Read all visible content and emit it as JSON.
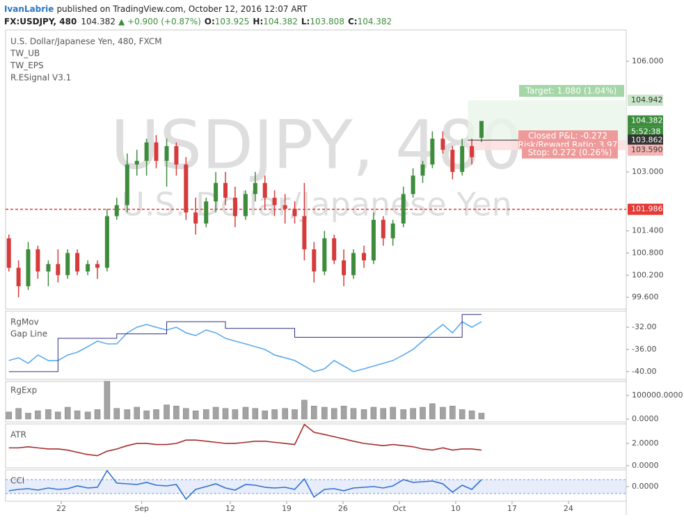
{
  "header": {
    "author": "IvanLabrie",
    "published": "published on TradingView.com, October 12, 2016 12:07 ART",
    "symbol": "FX:USDJPY, 480",
    "last": "104.382",
    "change": "▲ +0.900 (+0.87%)",
    "ohlc": [
      {
        "label": "O:",
        "value": "103.925"
      },
      {
        "label": "H:",
        "value": "104.382"
      },
      {
        "label": "L:",
        "value": "103.808"
      },
      {
        "label": "C:",
        "value": "104.382"
      }
    ]
  },
  "chart_data": [
    {
      "type": "candlestick",
      "title": "U.S. Dollar/Japanese Yen, 480, FXCM",
      "indicators": [
        "TW_UB",
        "TW_EPS",
        "R.ESignal V3.1"
      ],
      "watermark": [
        "USDJPY, 480",
        "U.S. Dollar/Japanese Yen"
      ],
      "up_color": "#3c8c3c",
      "down_color": "#d73a3a",
      "x": [
        15.5,
        16.7,
        17.9,
        19.1,
        20.4,
        21.6,
        22.8,
        24.0,
        25.3,
        26.5,
        27.7,
        28.9,
        30.2,
        31.4,
        32.6,
        33.8,
        35.1,
        36.3,
        37.5,
        38.7,
        40.0,
        41.2,
        42.4,
        43.6,
        44.9,
        46.1,
        47.3,
        48.5,
        49.8,
        51.0,
        52.2,
        53.4,
        54.7,
        55.9,
        57.1,
        58.3,
        59.6,
        60.8,
        62.0,
        63.2,
        64.5,
        65.7,
        66.9,
        68.1,
        69.4,
        70.6,
        71.8,
        73.0,
        74.2
      ],
      "open": [
        101.2,
        100.4,
        99.9,
        100.9,
        100.3,
        100.5,
        100.2,
        100.8,
        100.3,
        100.5,
        100.4,
        101.8,
        102.1,
        103.2,
        103.3,
        103.8,
        103.3,
        103.7,
        103.2,
        101.9,
        101.6,
        102.2,
        102.7,
        102.3,
        101.8,
        102.4,
        102.7,
        102.3,
        102.1,
        102.0,
        101.8,
        100.9,
        100.3,
        101.2,
        100.6,
        100.2,
        100.8,
        100.6,
        101.7,
        101.2,
        101.6,
        102.4,
        102.9,
        103.2,
        103.9,
        103.6,
        103.0,
        103.7,
        103.925
      ],
      "high": [
        101.3,
        100.6,
        101.1,
        101.0,
        100.6,
        100.9,
        100.9,
        100.9,
        100.6,
        100.6,
        102.0,
        102.3,
        103.5,
        103.6,
        103.9,
        104.0,
        103.9,
        103.8,
        103.4,
        102.3,
        102.3,
        103.0,
        103.0,
        102.6,
        102.5,
        103.0,
        102.9,
        102.5,
        102.4,
        102.2,
        102.7,
        101.1,
        101.4,
        101.3,
        100.9,
        100.9,
        101.0,
        101.9,
        101.8,
        101.7,
        102.6,
        103.1,
        103.3,
        104.1,
        104.1,
        103.7,
        103.9,
        103.9,
        104.382
      ],
      "low": [
        100.3,
        99.6,
        99.8,
        100.1,
        99.9,
        100.0,
        100.1,
        100.2,
        100.2,
        100.1,
        100.3,
        101.7,
        101.9,
        102.9,
        102.9,
        103.1,
        102.6,
        102.9,
        101.7,
        101.3,
        101.5,
        101.9,
        102.1,
        101.5,
        101.7,
        102.2,
        102.0,
        101.8,
        101.6,
        101.6,
        100.6,
        100.0,
        100.2,
        100.5,
        99.9,
        100.1,
        100.4,
        100.5,
        101.0,
        101.0,
        101.5,
        102.3,
        102.7,
        103.1,
        103.5,
        102.8,
        102.9,
        103.2,
        103.808
      ],
      "close": [
        100.4,
        99.9,
        100.9,
        100.3,
        100.5,
        100.2,
        100.8,
        100.3,
        100.5,
        100.4,
        101.8,
        102.1,
        103.2,
        103.3,
        103.8,
        103.3,
        103.7,
        103.2,
        101.9,
        101.6,
        102.2,
        102.7,
        102.3,
        101.8,
        102.4,
        102.7,
        102.3,
        102.1,
        102.0,
        101.8,
        100.9,
        100.3,
        101.2,
        100.6,
        100.2,
        100.8,
        100.6,
        101.7,
        101.2,
        101.6,
        102.4,
        102.9,
        103.2,
        103.9,
        103.6,
        103.0,
        103.7,
        103.4,
        104.382
      ],
      "xlim": [
        15.09,
        92.18
      ],
      "xticks": [
        22,
        {
          "value": 32,
          "label": "Sep"
        },
        {
          "value": 43,
          "label": "12"
        },
        {
          "value": 50,
          "label": "19"
        },
        {
          "value": 57,
          "label": "26"
        },
        {
          "value": 64,
          "label": "Oct"
        },
        {
          "value": 71,
          "label": "10"
        },
        {
          "value": 78,
          "label": "17"
        },
        {
          "value": 85,
          "label": "24"
        }
      ],
      "ylim": [
        99.28,
        106.85
      ],
      "yticks": [
        {
          "value": 106,
          "label": "106.000"
        },
        {
          "value": 103,
          "label": "103.000"
        },
        {
          "value": 101.4,
          "label": "101.400"
        },
        {
          "value": 100.8,
          "label": "100.800"
        },
        {
          "value": 100.2,
          "label": "100.200"
        },
        {
          "value": 99.6,
          "label": "99.600"
        }
      ],
      "level": {
        "value": 101.986,
        "label": "101.986",
        "color": "#e53935"
      },
      "last": {
        "value": 104.382,
        "label": "104.382",
        "color": "#3c8c3c"
      },
      "countdown": "5:52:38",
      "position": {
        "x": 72.5,
        "target": {
          "value": 104.942,
          "label": "104.942"
        },
        "entry": {
          "value": 103.862,
          "label": "103.862"
        },
        "stop": {
          "value": 103.59,
          "label": "103.590"
        },
        "target_label": "Target: 1.080 (1.04%)",
        "pnl_label": "Closed P&L: -0.272",
        "rr_label": "Risk/Reward Ratio: 3.97",
        "stop_label": "Stop: 0.272 (0.26%)"
      }
    },
    {
      "type": "line",
      "series": [
        {
          "name": "RgMov",
          "color": "#5aa9f0",
          "values": [
            -38,
            -37.5,
            -38.5,
            -37,
            -38,
            -38,
            -37,
            -36.5,
            -35.5,
            -34.5,
            -35,
            -35,
            -33,
            -32,
            -31.5,
            -32,
            -32.5,
            -32,
            -33,
            -33.5,
            -32.5,
            -33,
            -34,
            -34.5,
            -35,
            -35.5,
            -36,
            -37,
            -37.5,
            -38,
            -39,
            -40,
            -39.5,
            -38,
            -39,
            -40,
            -39.5,
            -39,
            -38.5,
            -38,
            -37,
            -36,
            -34.5,
            -33,
            -31.5,
            -33,
            -31,
            -32,
            -31
          ]
        },
        {
          "name": "Gap Line",
          "color": "#2e2e8a",
          "step": true,
          "values": [
            -40,
            -40,
            -40,
            -40,
            -40,
            -34,
            -34,
            -34,
            -34,
            -34,
            -34,
            -33.2,
            -33.2,
            -33.2,
            -33.2,
            -33.2,
            -31,
            -31,
            -31,
            -31,
            -31,
            -31,
            -32.2,
            -32.2,
            -32.2,
            -32.2,
            -32.2,
            -32.2,
            -32.2,
            -33.8,
            -33.8,
            -33.8,
            -33.8,
            -33.8,
            -33.8,
            -33.8,
            -33.8,
            -33.8,
            -33.8,
            -33.8,
            -33.8,
            -33.8,
            -33.8,
            -33.8,
            -33.8,
            -33.8,
            -29.7,
            -29.7,
            -29.7
          ]
        }
      ],
      "ylim": [
        -41.4,
        -29.1
      ],
      "yticks": [
        {
          "value": -32,
          "label": "-32.00"
        },
        {
          "value": -36,
          "label": "-36.00"
        },
        {
          "value": -40,
          "label": "-40.00"
        }
      ]
    },
    {
      "type": "bar",
      "series": [
        {
          "name": "RgExp",
          "color": "#a3a3a3",
          "values": [
            30000,
            45000,
            25000,
            35000,
            40000,
            30000,
            50000,
            35000,
            30000,
            40000,
            160000,
            45000,
            40000,
            50000,
            35000,
            40000,
            60000,
            55000,
            45000,
            35000,
            40000,
            50000,
            45000,
            40000,
            50000,
            45000,
            35000,
            40000,
            45000,
            40000,
            80000,
            55000,
            50000,
            45000,
            55000,
            45000,
            40000,
            50000,
            45000,
            50000,
            40000,
            45000,
            50000,
            65000,
            50000,
            55000,
            40000,
            35000,
            25000
          ]
        }
      ],
      "ylim": [
        -11800,
        158800
      ],
      "yticks": [
        {
          "value": 100000,
          "label": "100000.0000"
        },
        {
          "value": 0,
          "label": "0.0000"
        }
      ]
    },
    {
      "type": "line",
      "series": [
        {
          "name": "ATR",
          "color": "#a52a2a",
          "values": [
            1.6,
            1.6,
            1.7,
            1.6,
            1.5,
            1.5,
            1.4,
            1.2,
            1.0,
            0.9,
            1.3,
            1.5,
            1.8,
            2.0,
            2.0,
            1.9,
            1.9,
            2.0,
            2.3,
            2.3,
            2.2,
            2.1,
            2.0,
            2.0,
            2.1,
            2.2,
            2.2,
            2.1,
            2.0,
            1.9,
            3.7,
            3.0,
            2.8,
            2.6,
            2.4,
            2.2,
            2.0,
            1.9,
            1.8,
            1.9,
            1.8,
            1.7,
            1.5,
            1.4,
            1.6,
            1.4,
            1.5,
            1.5,
            1.4
          ]
        }
      ],
      "ylim": [
        -0.19,
        3.75
      ],
      "yticks": [
        {
          "value": 2,
          "label": "2.0000"
        },
        {
          "value": 0,
          "label": "0.0000"
        }
      ]
    },
    {
      "type": "line",
      "series": [
        {
          "name": "CCI",
          "color": "#2f6fd0",
          "values": [
            -60,
            -40,
            -30,
            -50,
            -20,
            -40,
            -30,
            10,
            -20,
            -10,
            230,
            50,
            40,
            30,
            60,
            20,
            10,
            30,
            -180,
            -40,
            0,
            40,
            -20,
            -50,
            30,
            20,
            -10,
            -20,
            -10,
            -40,
            110,
            -150,
            -40,
            -30,
            -60,
            -20,
            -10,
            0,
            -20,
            10,
            100,
            60,
            70,
            80,
            40,
            -80,
            20,
            -40,
            100
          ]
        }
      ],
      "band": [
        -100,
        100
      ],
      "band_color": "#3d6fd6",
      "ylim": [
        -210,
        240
      ],
      "yticks": [
        {
          "value": 0,
          "label": "0.0000"
        }
      ]
    }
  ]
}
